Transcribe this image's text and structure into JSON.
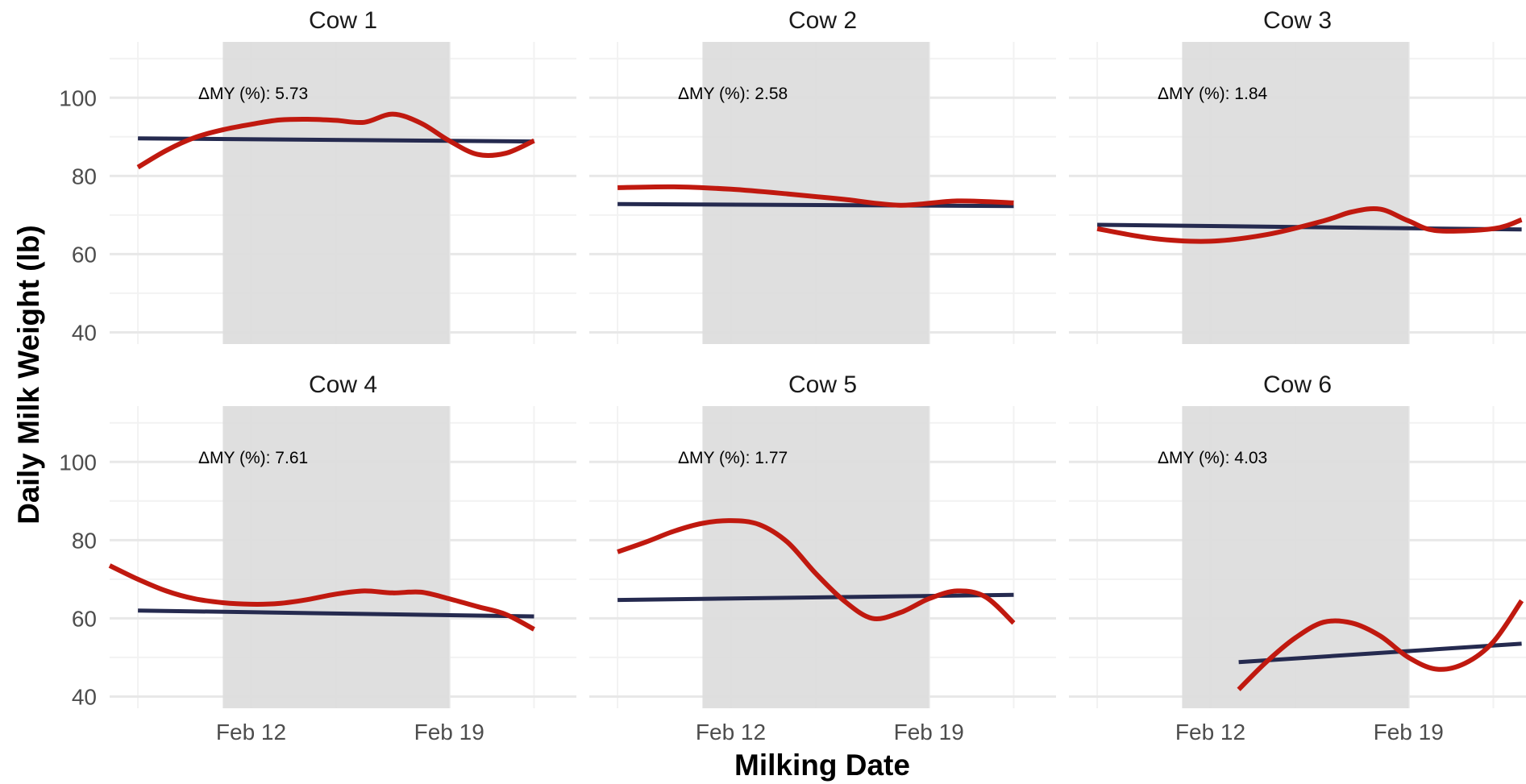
{
  "chart_data": {
    "type": "line",
    "layout": "facet-grid-2x3",
    "xlabel": "Milking Date",
    "ylabel": "Daily Milk Weight (lb)",
    "xlim": [
      "2024-02-07",
      "2024-02-23"
    ],
    "ylim": [
      37,
      113
    ],
    "x_ticks": [
      {
        "date": "2024-02-12",
        "label": "Feb 12"
      },
      {
        "date": "2024-02-19",
        "label": "Feb 19"
      }
    ],
    "x_minor_dates": [
      "2024-02-08",
      "2024-02-15",
      "2024-02-22"
    ],
    "y_ticks": [
      40,
      60,
      80,
      100
    ],
    "y_minor": [
      50,
      70,
      90,
      110
    ],
    "grid": true,
    "shaded_period": {
      "start": "2024-02-11",
      "end": "2024-02-19"
    },
    "colors": {
      "smooth_line": "#c0190f",
      "trend_line": "#252a4f",
      "shade": "#dcdcdc",
      "grid_major": "#e8e8e8",
      "grid_minor": "#f2f2f2"
    },
    "facets": [
      {
        "title": "Cow 1",
        "annotation": "ΔMY (%): 5.73",
        "trend": [
          {
            "x": "2024-02-08",
            "y": 89.6
          },
          {
            "x": "2024-02-22",
            "y": 88.8
          }
        ],
        "smooth": [
          {
            "x": "2024-02-08",
            "y": 82.2
          },
          {
            "x": "2024-02-09",
            "y": 86.5
          },
          {
            "x": "2024-02-10",
            "y": 89.8
          },
          {
            "x": "2024-02-11",
            "y": 91.8
          },
          {
            "x": "2024-02-12",
            "y": 93.2
          },
          {
            "x": "2024-02-13",
            "y": 94.3
          },
          {
            "x": "2024-02-14",
            "y": 94.5
          },
          {
            "x": "2024-02-15",
            "y": 94.2
          },
          {
            "x": "2024-02-16",
            "y": 93.7
          },
          {
            "x": "2024-02-17",
            "y": 95.8
          },
          {
            "x": "2024-02-18",
            "y": 93.5
          },
          {
            "x": "2024-02-19",
            "y": 89.0
          },
          {
            "x": "2024-02-20",
            "y": 85.5
          },
          {
            "x": "2024-02-21",
            "y": 85.8
          },
          {
            "x": "2024-02-22",
            "y": 89.0
          }
        ]
      },
      {
        "title": "Cow 2",
        "annotation": "ΔMY (%): 2.58",
        "trend": [
          {
            "x": "2024-02-08",
            "y": 72.8
          },
          {
            "x": "2024-02-22",
            "y": 72.3
          }
        ],
        "smooth": [
          {
            "x": "2024-02-08",
            "y": 77.0
          },
          {
            "x": "2024-02-10",
            "y": 77.2
          },
          {
            "x": "2024-02-12",
            "y": 76.6
          },
          {
            "x": "2024-02-14",
            "y": 75.4
          },
          {
            "x": "2024-02-16",
            "y": 74.0
          },
          {
            "x": "2024-02-18",
            "y": 72.5
          },
          {
            "x": "2024-02-20",
            "y": 73.6
          },
          {
            "x": "2024-02-22",
            "y": 73.1
          }
        ]
      },
      {
        "title": "Cow 3",
        "annotation": "ΔMY (%): 1.84",
        "trend": [
          {
            "x": "2024-02-08",
            "y": 67.5
          },
          {
            "x": "2024-02-23",
            "y": 66.3
          }
        ],
        "smooth": [
          {
            "x": "2024-02-08",
            "y": 66.5
          },
          {
            "x": "2024-02-10",
            "y": 64.0
          },
          {
            "x": "2024-02-12",
            "y": 63.3
          },
          {
            "x": "2024-02-14",
            "y": 65.0
          },
          {
            "x": "2024-02-16",
            "y": 68.5
          },
          {
            "x": "2024-02-17",
            "y": 70.8
          },
          {
            "x": "2024-02-18",
            "y": 71.5
          },
          {
            "x": "2024-02-19",
            "y": 68.5
          },
          {
            "x": "2024-02-20",
            "y": 66.0
          },
          {
            "x": "2024-02-22",
            "y": 66.5
          },
          {
            "x": "2024-02-23",
            "y": 68.8
          }
        ]
      },
      {
        "title": "Cow 4",
        "annotation": "ΔMY (%): 7.61",
        "trend": [
          {
            "x": "2024-02-08",
            "y": 62.0
          },
          {
            "x": "2024-02-22",
            "y": 60.5
          }
        ],
        "smooth": [
          {
            "x": "2024-02-07",
            "y": 73.5
          },
          {
            "x": "2024-02-08",
            "y": 70.0
          },
          {
            "x": "2024-02-09",
            "y": 67.0
          },
          {
            "x": "2024-02-10",
            "y": 65.0
          },
          {
            "x": "2024-02-11",
            "y": 64.0
          },
          {
            "x": "2024-02-12",
            "y": 63.6
          },
          {
            "x": "2024-02-13",
            "y": 63.8
          },
          {
            "x": "2024-02-14",
            "y": 64.8
          },
          {
            "x": "2024-02-15",
            "y": 66.2
          },
          {
            "x": "2024-02-16",
            "y": 67.0
          },
          {
            "x": "2024-02-17",
            "y": 66.5
          },
          {
            "x": "2024-02-18",
            "y": 66.7
          },
          {
            "x": "2024-02-19",
            "y": 65.0
          },
          {
            "x": "2024-02-20",
            "y": 63.0
          },
          {
            "x": "2024-02-21",
            "y": 61.0
          },
          {
            "x": "2024-02-22",
            "y": 57.2
          }
        ]
      },
      {
        "title": "Cow 5",
        "annotation": "ΔMY (%): 1.77",
        "trend": [
          {
            "x": "2024-02-08",
            "y": 64.7
          },
          {
            "x": "2024-02-22",
            "y": 66.0
          }
        ],
        "smooth": [
          {
            "x": "2024-02-08",
            "y": 77.0
          },
          {
            "x": "2024-02-09",
            "y": 79.5
          },
          {
            "x": "2024-02-10",
            "y": 82.3
          },
          {
            "x": "2024-02-11",
            "y": 84.3
          },
          {
            "x": "2024-02-12",
            "y": 85.0
          },
          {
            "x": "2024-02-13",
            "y": 84.0
          },
          {
            "x": "2024-02-14",
            "y": 79.5
          },
          {
            "x": "2024-02-15",
            "y": 71.5
          },
          {
            "x": "2024-02-16",
            "y": 64.5
          },
          {
            "x": "2024-02-17",
            "y": 60.0
          },
          {
            "x": "2024-02-18",
            "y": 61.5
          },
          {
            "x": "2024-02-19",
            "y": 65.0
          },
          {
            "x": "2024-02-20",
            "y": 67.0
          },
          {
            "x": "2024-02-21",
            "y": 65.5
          },
          {
            "x": "2024-02-22",
            "y": 58.8
          }
        ]
      },
      {
        "title": "Cow 6",
        "annotation": "ΔMY (%): 4.03",
        "trend": [
          {
            "x": "2024-02-13",
            "y": 48.8
          },
          {
            "x": "2024-02-23",
            "y": 53.5
          }
        ],
        "smooth": [
          {
            "x": "2024-02-13",
            "y": 41.8
          },
          {
            "x": "2024-02-14",
            "y": 49.0
          },
          {
            "x": "2024-02-15",
            "y": 55.0
          },
          {
            "x": "2024-02-16",
            "y": 59.0
          },
          {
            "x": "2024-02-17",
            "y": 58.8
          },
          {
            "x": "2024-02-18",
            "y": 55.5
          },
          {
            "x": "2024-02-19",
            "y": 50.0
          },
          {
            "x": "2024-02-20",
            "y": 47.0
          },
          {
            "x": "2024-02-21",
            "y": 48.5
          },
          {
            "x": "2024-02-22",
            "y": 54.0
          },
          {
            "x": "2024-02-23",
            "y": 64.5
          }
        ]
      }
    ]
  }
}
